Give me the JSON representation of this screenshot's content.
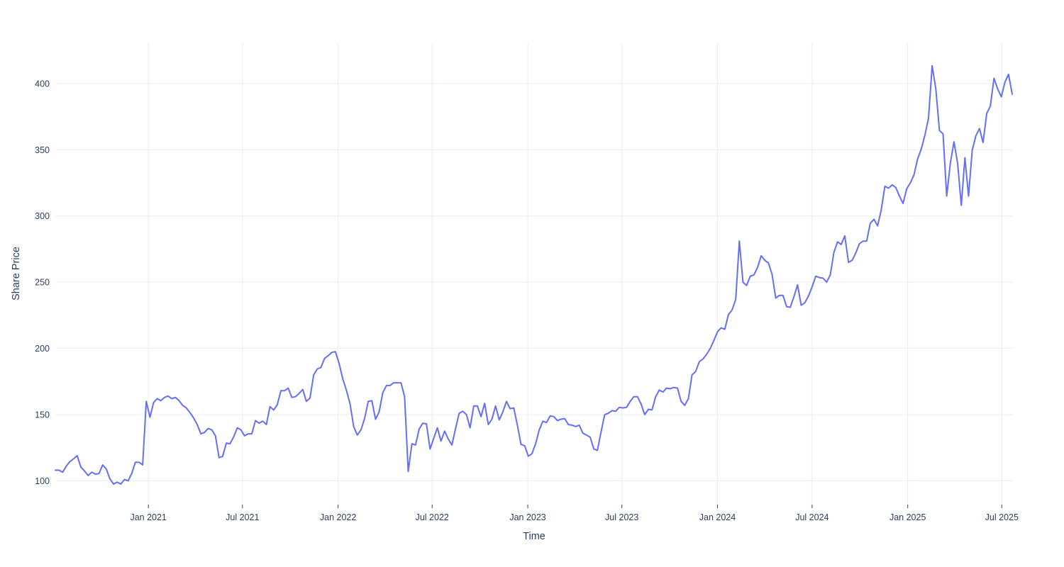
{
  "chart_data": {
    "type": "line",
    "title": "",
    "xlabel": "Time",
    "ylabel": "Share Price",
    "legend": "none",
    "grid": "on",
    "background_color": "#ffffff",
    "line_color": "#636efa",
    "grid_color": "#e9edf4",
    "font_color": "#2a3f5f",
    "ylim": [
      82,
      431
    ],
    "y_ticks": [
      100,
      150,
      200,
      250,
      300,
      350,
      400
    ],
    "x_ticks": [
      {
        "date": "2021-01-01",
        "label": "Jan 2021"
      },
      {
        "date": "2021-07-01",
        "label": "Jul 2021"
      },
      {
        "date": "2022-01-01",
        "label": "Jan 2022"
      },
      {
        "date": "2022-07-01",
        "label": "Jul 2022"
      },
      {
        "date": "2023-01-01",
        "label": "Jan 2023"
      },
      {
        "date": "2023-07-01",
        "label": "Jul 2023"
      },
      {
        "date": "2024-01-01",
        "label": "Jan 2024"
      },
      {
        "date": "2024-07-01",
        "label": "Jul 2024"
      },
      {
        "date": "2025-01-01",
        "label": "Jan 2025"
      },
      {
        "date": "2025-07-01",
        "label": "Jul 2025"
      }
    ],
    "series": [
      {
        "name": "Share Price",
        "start_date": "2020-07-06",
        "interval_days": 7,
        "x_range_weeks": [
          0,
          263.2
        ],
        "values": [
          108,
          108,
          106.5,
          111,
          114.5,
          116.5,
          119,
          110.5,
          107.5,
          104,
          106.5,
          105,
          105.5,
          112,
          109,
          101.5,
          97.5,
          99,
          97.5,
          101,
          100,
          105.5,
          114,
          114,
          112,
          160,
          148,
          159,
          162,
          160.5,
          163,
          164,
          162,
          163,
          160.5,
          157,
          155,
          151.5,
          147.5,
          142.5,
          135.5,
          136.5,
          139.5,
          138.5,
          134,
          117.5,
          118.5,
          128.5,
          128,
          133,
          140,
          138.5,
          134,
          135.5,
          135.5,
          145.5,
          143.5,
          145,
          142.5,
          156,
          153.5,
          157.5,
          168,
          168,
          170,
          163,
          163.5,
          166,
          169,
          160,
          162.5,
          180,
          184.5,
          185.5,
          192.5,
          194.5,
          197,
          197.5,
          188.5,
          177,
          168.5,
          158,
          141,
          134.5,
          138.5,
          147,
          160,
          160.5,
          146.5,
          152,
          166.5,
          172,
          172,
          174,
          174,
          174,
          163.5,
          107,
          128,
          127,
          139,
          143.5,
          143,
          124,
          132,
          140,
          130,
          137.5,
          131.5,
          127,
          139.5,
          151,
          152.5,
          150,
          140,
          156.5,
          156.5,
          148.5,
          158.5,
          142.5,
          146.5,
          156.5,
          146,
          152,
          160,
          154.5,
          155,
          142,
          127.5,
          126.5,
          118.5,
          120.5,
          128,
          138.5,
          145,
          144,
          149,
          148.5,
          145.5,
          146.5,
          147,
          142.5,
          142,
          141,
          142,
          136,
          134.5,
          133,
          124,
          123,
          137,
          150,
          151,
          153,
          152.5,
          155.5,
          155,
          155.5,
          160,
          163.5,
          163.5,
          158,
          150,
          154,
          153.5,
          163.5,
          168.5,
          167,
          170,
          169.5,
          170.5,
          170,
          160,
          157,
          162,
          180,
          182.5,
          190,
          192,
          195.5,
          200,
          206,
          212.5,
          215.5,
          214.5,
          225.5,
          229,
          237,
          281,
          250,
          247.5,
          254.5,
          255.5,
          261,
          270,
          266.5,
          264.5,
          256,
          238,
          240,
          240,
          231.5,
          231,
          239,
          248,
          232.5,
          234.5,
          239.5,
          246.5,
          254.5,
          253.5,
          253,
          250,
          255.5,
          272.5,
          280.5,
          278.5,
          285,
          265,
          266.5,
          272,
          279,
          281,
          281,
          294.5,
          297.5,
          292.5,
          304.5,
          322.5,
          321,
          323.5,
          321.5,
          315,
          309.5,
          320.5,
          325,
          331,
          343,
          350.5,
          361,
          374,
          413.5,
          396,
          364.5,
          362,
          315,
          340,
          356,
          340,
          308,
          344,
          315,
          349.5,
          360.5,
          366,
          355.5,
          377.5,
          383,
          404,
          396,
          390,
          401,
          407,
          392
        ]
      }
    ]
  }
}
